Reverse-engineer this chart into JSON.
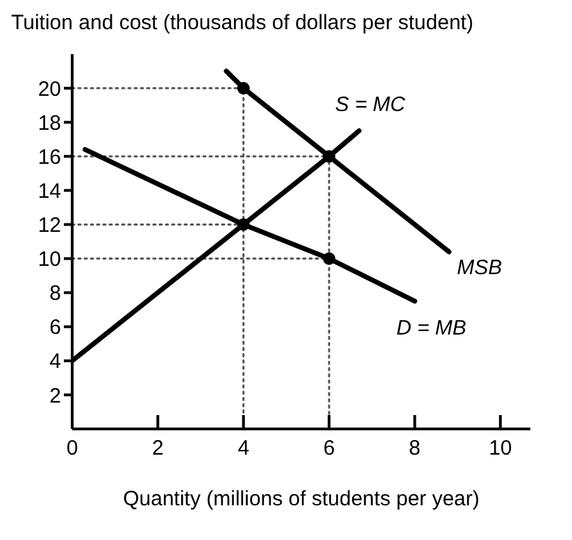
{
  "chart_data": {
    "type": "line",
    "ylabel": "Tuition and cost (thousands of dollars per student)",
    "xlabel": "Quantity (millions of students per year)",
    "xlim": [
      0,
      10.7
    ],
    "xticks": [
      0,
      2,
      4,
      6,
      8,
      10
    ],
    "ylim": [
      0,
      22
    ],
    "yticks": [
      2,
      4,
      6,
      8,
      10,
      12,
      14,
      16,
      18,
      20
    ],
    "grid": false,
    "legend": false,
    "series": [
      {
        "type": "line",
        "line_style": "dotted",
        "marker": "none",
        "color": "#555555",
        "x": [
          0,
          4,
          4
        ],
        "values": [
          20,
          20,
          0
        ]
      },
      {
        "type": "line",
        "line_style": "dotted",
        "marker": "none",
        "color": "#555555",
        "x": [
          0,
          6,
          6
        ],
        "values": [
          16,
          16,
          0
        ]
      },
      {
        "type": "line",
        "line_style": "dotted",
        "marker": "none",
        "color": "#555555",
        "x": [
          0,
          4
        ],
        "values": [
          12,
          12
        ]
      },
      {
        "type": "line",
        "line_style": "dotted",
        "marker": "none",
        "color": "#555555",
        "x": [
          0,
          6
        ],
        "values": [
          10,
          10
        ]
      },
      {
        "name": "S = MC",
        "type": "line",
        "line_style": "solid",
        "marker": "none",
        "color": "#000000",
        "x": [
          0,
          4,
          6,
          6.7
        ],
        "values": [
          4,
          12,
          16,
          17.5
        ]
      },
      {
        "name": "MSB",
        "type": "line",
        "line_style": "solid",
        "marker": "none",
        "color": "#000000",
        "x": [
          3.6,
          4,
          6,
          8.8
        ],
        "values": [
          21,
          20,
          16,
          10.4
        ]
      },
      {
        "name": "D = MB",
        "type": "line",
        "line_style": "solid",
        "marker": "none",
        "color": "#000000",
        "x": [
          0.3,
          4,
          6,
          8
        ],
        "values": [
          16.4,
          12,
          10,
          7.5
        ]
      },
      {
        "type": "scatter",
        "marker": "circle",
        "color": "#000000",
        "x": [
          4,
          6,
          4,
          6
        ],
        "values": [
          20,
          16,
          12,
          10
        ]
      }
    ]
  }
}
